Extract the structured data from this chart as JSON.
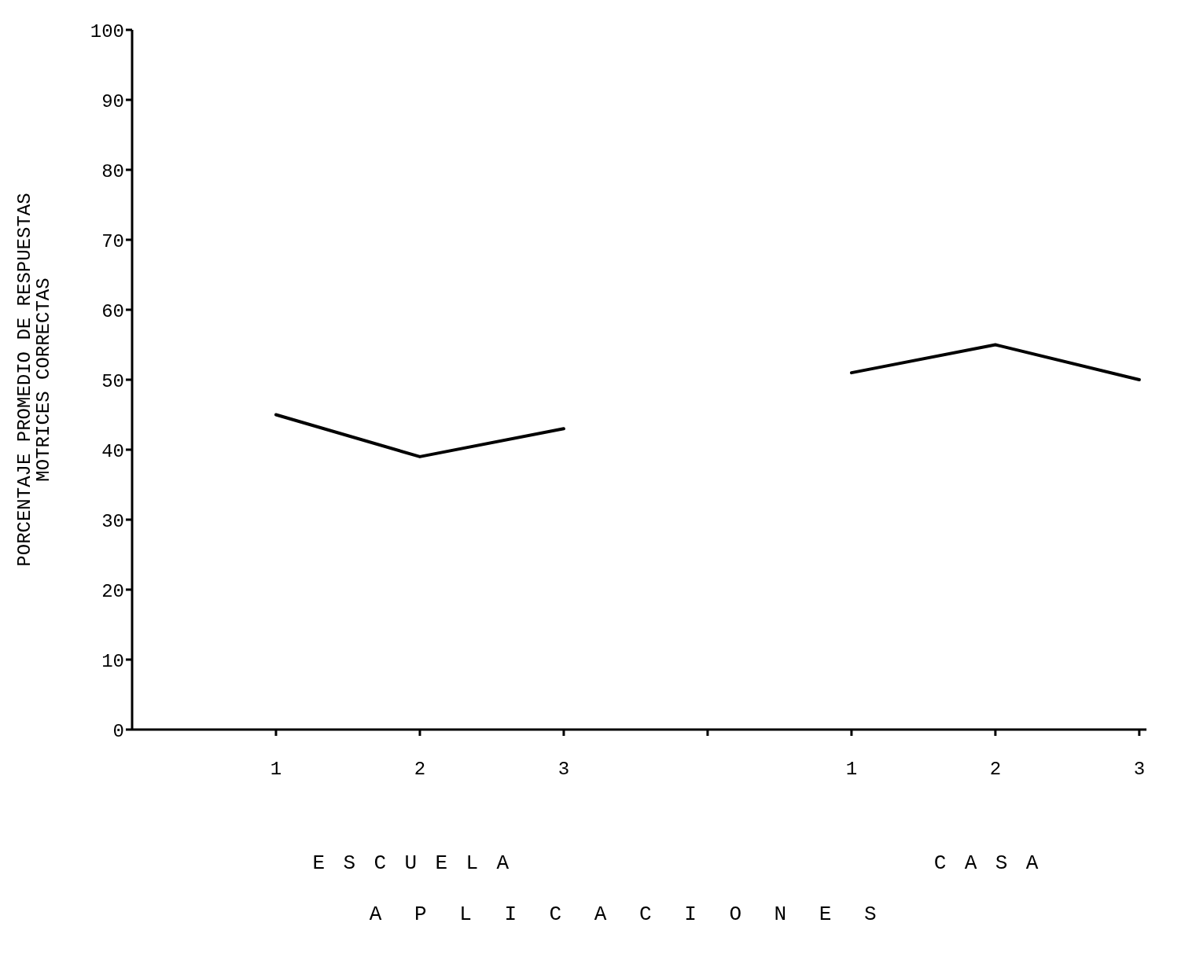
{
  "chart_data": {
    "type": "line",
    "ylabel": "PORCENTAJE PROMEDIO DE RESPUESTAS\nMOTRICES CORRECTAS",
    "categories": [
      "1",
      "2",
      "3",
      null,
      "1",
      "2",
      "3"
    ],
    "series": [
      {
        "color": "#000000",
        "values": [
          45,
          39,
          43,
          null,
          51,
          55,
          50
        ]
      }
    ],
    "ylim": [
      0,
      100
    ],
    "yticks": [
      0,
      10,
      20,
      30,
      40,
      50,
      60,
      70,
      80,
      90,
      100
    ],
    "annotations": [
      "ESCUELA",
      "CASA",
      "APLICACIONES"
    ],
    "grid": false,
    "marker": "none",
    "line_style": "solid"
  }
}
